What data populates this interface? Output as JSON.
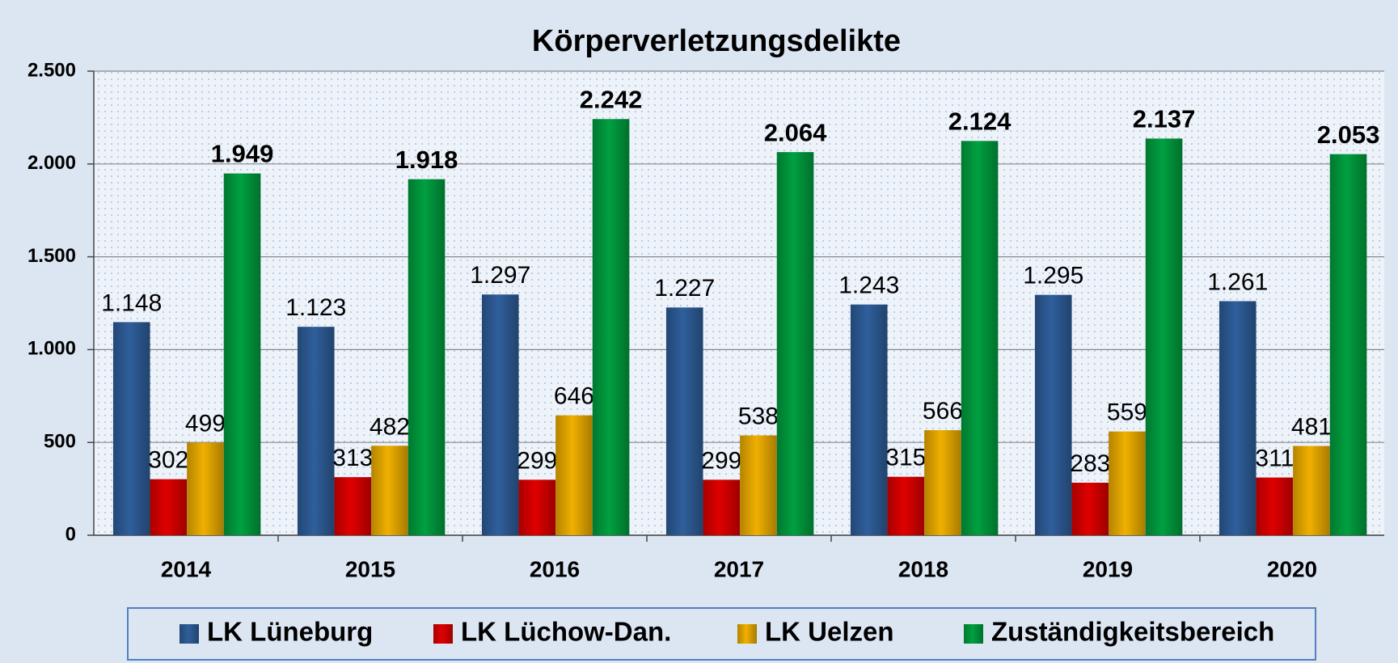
{
  "chart_data": {
    "type": "bar",
    "title": "Körperverletzungsdelikte",
    "categories": [
      "2014",
      "2015",
      "2016",
      "2017",
      "2018",
      "2019",
      "2020"
    ],
    "series": [
      {
        "name": "LK Lüneburg",
        "color": "#2f5f9c",
        "values": [
          1148,
          1123,
          1297,
          1227,
          1243,
          1295,
          1261
        ],
        "value_labels": [
          "1.148",
          "1.123",
          "1.297",
          "1.227",
          "1.243",
          "1.295",
          "1.261"
        ]
      },
      {
        "name": "LK Lüchow-Dan.",
        "color": "#e00000",
        "values": [
          302,
          313,
          299,
          299,
          315,
          283,
          311
        ]
      },
      {
        "name": "LK Uelzen",
        "color": "#f0b000",
        "values": [
          499,
          482,
          646,
          538,
          566,
          559,
          481
        ]
      },
      {
        "name": "Zuständigkeitsbereich",
        "color": "#00a040",
        "values": [
          1949,
          1918,
          2242,
          2064,
          2124,
          2137,
          2053
        ],
        "value_labels": [
          "1.949",
          "1.918",
          "2.242",
          "2.064",
          "2.124",
          "2.137",
          "2.053"
        ]
      }
    ],
    "ylim": [
      0,
      2500
    ],
    "yticks": [
      0,
      500,
      {
        "value": 1000,
        "label": "1.000"
      },
      {
        "value": 1500,
        "label": "1.500"
      },
      {
        "value": 2000,
        "label": "2.000"
      },
      {
        "value": 2500,
        "label": "2.500"
      }
    ],
    "grid": true
  }
}
